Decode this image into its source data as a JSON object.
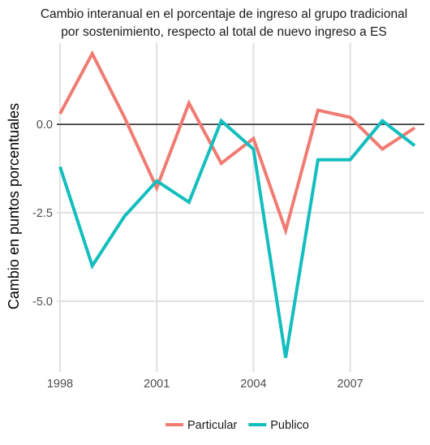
{
  "chart_data": {
    "type": "line",
    "title": "Cambio interanual en el porcentaje de ingreso al grupo tradicional por sostenimiento, respecto al total de nuevo ingreso a ES",
    "title_lines": [
      "Cambio interanual en el porcentaje de ingreso al grupo tradicional",
      "por sostenimiento, respecto al total de nuevo ingreso a ES"
    ],
    "xlabel": "",
    "ylabel": "Cambio en puntos porcentuales",
    "x": [
      1998,
      1999,
      2000,
      2001,
      2002,
      2003,
      2004,
      2005,
      2006,
      2007,
      2008,
      2009
    ],
    "x_ticks": [
      1998,
      2001,
      2004,
      2007
    ],
    "x_tick_labels": [
      "1998",
      "2001",
      "2004",
      "2007"
    ],
    "y_ticks": [
      0.0,
      -2.5,
      -5.0
    ],
    "y_tick_labels": [
      "0.0",
      "-2.5",
      "-5.0"
    ],
    "xlim": [
      1997.9,
      2009.3
    ],
    "ylim": [
      -7.0,
      2.3
    ],
    "series": [
      {
        "name": "Particular",
        "color": "#F07B72",
        "values": [
          0.3,
          2.0,
          0.2,
          -1.8,
          0.6,
          -1.1,
          -0.4,
          -3.0,
          0.4,
          0.2,
          -0.7,
          -0.1
        ]
      },
      {
        "name": "Publico",
        "color": "#14BEBE",
        "values": [
          -1.2,
          -4.0,
          -2.6,
          -1.6,
          -2.2,
          0.1,
          -0.7,
          -6.6,
          -1.0,
          -1.0,
          0.1,
          -0.6
        ]
      }
    ],
    "reference_line": {
      "y": 0,
      "color": "#000000"
    },
    "grid": true,
    "legend_position": "bottom"
  }
}
